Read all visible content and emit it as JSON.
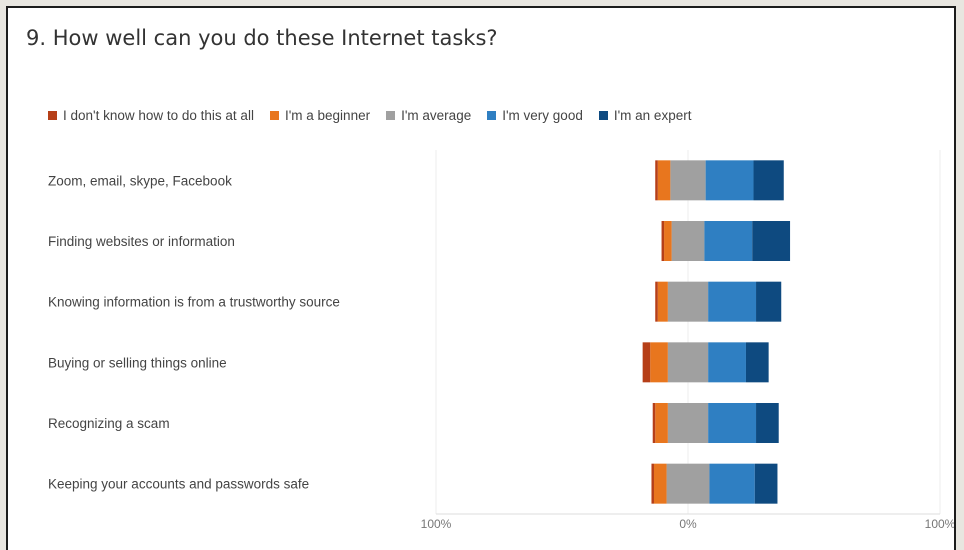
{
  "question": {
    "number": "9.",
    "text": "How well can you do these Internet tasks?"
  },
  "colors": {
    "dont_know": "#b63f18",
    "beginner": "#e8761e",
    "average": "#a0a0a0",
    "very_good": "#2f7fc2",
    "expert": "#0e4a80",
    "gridline": "#eeeeee",
    "axis": "#dddddd"
  },
  "chart_data": {
    "type": "bar",
    "orientation": "horizontal-diverging",
    "title": "How well can you do these Internet tasks?",
    "categories": [
      "Zoom, email, skype, Facebook",
      "Finding websites or information",
      "Knowing information is from a trustworthy source",
      "Buying or selling things online",
      "Recognizing a scam",
      "Keeping your accounts and passwords safe"
    ],
    "series": [
      {
        "name": "I don't know how to do this at all",
        "color_key": "dont_know",
        "values": [
          1,
          1,
          1,
          3,
          1,
          1
        ]
      },
      {
        "name": "I'm a beginner",
        "color_key": "beginner",
        "values": [
          5,
          3,
          4,
          7,
          5,
          5
        ]
      },
      {
        "name": "I'm average",
        "color_key": "average",
        "values": [
          14,
          13,
          16,
          16,
          16,
          17
        ]
      },
      {
        "name": "I'm very good",
        "color_key": "very_good",
        "values": [
          19,
          19,
          19,
          15,
          19,
          18
        ]
      },
      {
        "name": "I'm an expert",
        "color_key": "expert",
        "values": [
          12,
          15,
          10,
          9,
          9,
          9
        ]
      }
    ],
    "negative_side": [
      "I don't know how to do this at all",
      "I'm a beginner"
    ],
    "neutral_centered": "I'm average",
    "positive_side": [
      "I'm very good",
      "I'm an expert"
    ],
    "xlim": [
      -100,
      100
    ],
    "tick_labels": [
      "100%",
      "0%",
      "100%"
    ],
    "grid": true,
    "legend_position": "top"
  }
}
